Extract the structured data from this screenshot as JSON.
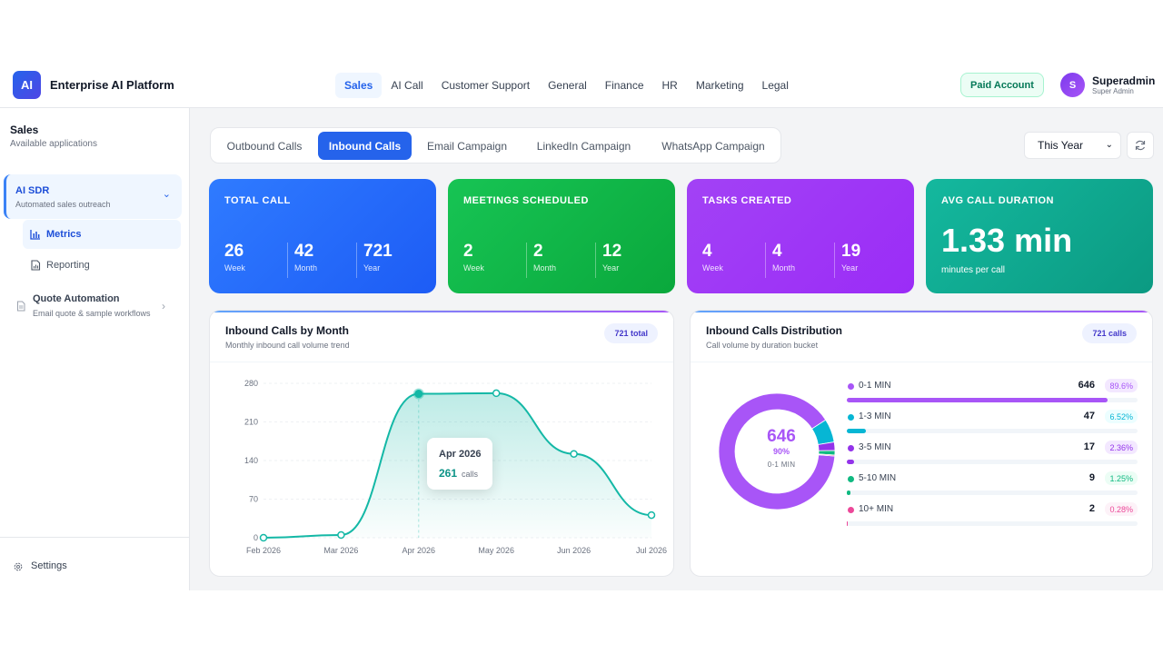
{
  "app": {
    "logo_text": "AI",
    "brand": "Enterprise AI Platform",
    "nav": [
      "Sales",
      "AI Call",
      "Customer Support",
      "General",
      "Finance",
      "HR",
      "Marketing",
      "Legal"
    ],
    "active_nav": "Sales",
    "plan_badge": "Paid Account",
    "user": {
      "initial": "S",
      "name": "Superadmin",
      "role": "Super Admin"
    }
  },
  "sidebar": {
    "title": "Sales",
    "subtitle": "Available applications",
    "group": {
      "title": "AI SDR",
      "subtitle": "Automated sales outreach"
    },
    "items": [
      {
        "label": "Metrics",
        "icon": "bar-chart-icon"
      },
      {
        "label": "Reporting",
        "icon": "document-chart-icon"
      }
    ],
    "quote": {
      "title": "Quote Automation",
      "subtitle": "Email quote & sample workflows"
    },
    "settings": "Settings"
  },
  "tabs": [
    "Outbound Calls",
    "Inbound Calls",
    "Email Campaign",
    "LinkedIn Campaign",
    "WhatsApp Campaign"
  ],
  "active_tab": "Inbound Calls",
  "period": "This Year",
  "kpis": [
    {
      "title": "TOTAL CALL",
      "week": "26",
      "month": "42",
      "year": "721",
      "color_from": "#2f7bff",
      "color_to": "#1d5cf5"
    },
    {
      "title": "MEETINGS SCHEDULED",
      "week": "2",
      "month": "2",
      "year": "12",
      "color_from": "#17c454",
      "color_to": "#0aa83c"
    },
    {
      "title": "TASKS CREATED",
      "week": "4",
      "month": "4",
      "year": "19",
      "color_from": "#a242f5",
      "color_to": "#9b2cf7"
    },
    {
      "title": "AVG CALL DURATION",
      "big": "1.33 min",
      "sub": "minutes per call",
      "color_from": "#14b89e",
      "color_to": "#0b9a82"
    }
  ],
  "labels": {
    "week": "Week",
    "month": "Month",
    "year": "Year"
  },
  "line_panel": {
    "title": "Inbound Calls by Month",
    "subtitle": "Monthly inbound call volume trend",
    "pill": "721 total",
    "tooltip": {
      "date": "Apr 2026",
      "value": "261",
      "unit": "calls"
    }
  },
  "donut_panel": {
    "title": "Inbound Calls Distribution",
    "subtitle": "Call volume by duration bucket",
    "pill": "721 calls",
    "center_value": "646",
    "center_pct": "90%",
    "center_label": "0-1 MIN"
  },
  "chart_data": [
    {
      "type": "line",
      "x": [
        "Feb 2026",
        "Mar 2026",
        "Apr 2026",
        "May 2026",
        "Jun 2026",
        "Jul 2026"
      ],
      "y": [
        0,
        5,
        261,
        262,
        152,
        41
      ],
      "yticks": [
        0,
        70,
        140,
        210,
        280
      ],
      "ylim": [
        0,
        280
      ],
      "color": "#14b8a6"
    },
    {
      "type": "pie",
      "categories": [
        "0-1 MIN",
        "1-3 MIN",
        "3-5 MIN",
        "5-10 MIN",
        "10+ MIN"
      ],
      "values": [
        646,
        47,
        17,
        9,
        2
      ],
      "percents": [
        "89.6%",
        "6.52%",
        "2.36%",
        "1.25%",
        "0.28%"
      ],
      "colors": [
        "#a855f7",
        "#06b6d4",
        "#9333ea",
        "#10b981",
        "#ec4899"
      ],
      "pct_bg": [
        "#f3e8ff",
        "#ecfeff",
        "#f3e8ff",
        "#ecfdf5",
        "#fdf2f8"
      ]
    }
  ]
}
